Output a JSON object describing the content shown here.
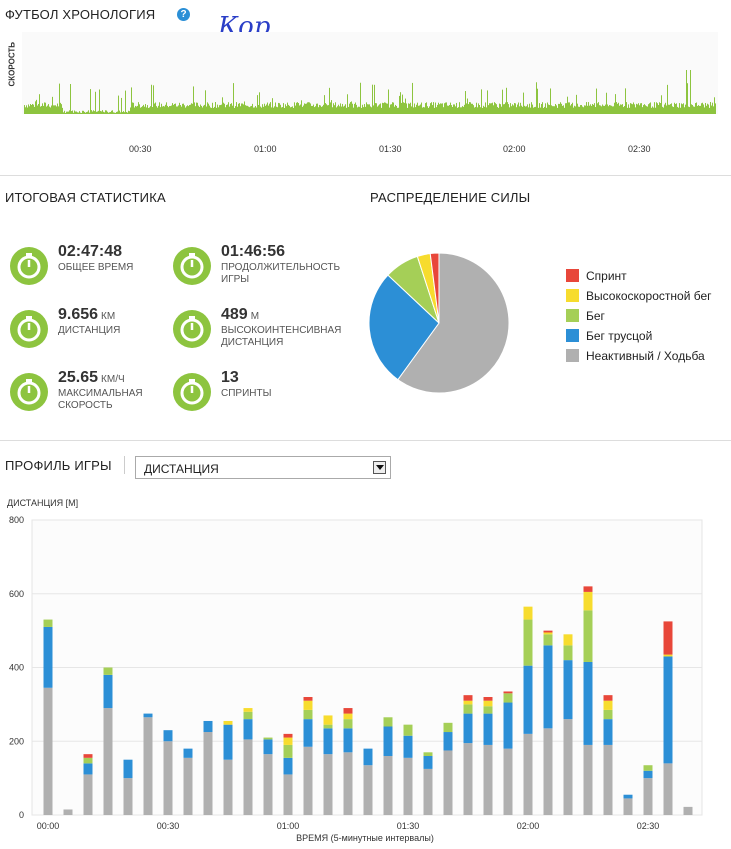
{
  "timeline": {
    "title": "ФУТБОЛ ХРОНОЛОГИЯ",
    "help_icon": "question-icon",
    "help_symbol": "?",
    "handwriting": "Кор",
    "y_label": "СКОРОСТЬ",
    "ticks": [
      "00:30",
      "01:00",
      "01:30",
      "02:00",
      "02:30"
    ],
    "color": "#8dc43f"
  },
  "summary": {
    "title": "ИТОГОВАЯ СТАТИСТИКА",
    "stats": [
      {
        "icon": "stopwatch-icon",
        "value": "02:47:48",
        "unit": "",
        "label": "ОБЩЕЕ ВРЕМЯ"
      },
      {
        "icon": "stopwatch-icon",
        "value": "01:46:56",
        "unit": "",
        "label": "ПРОДОЛЖИТЕЛЬНОСТЬ ИГРЫ"
      },
      {
        "icon": "road-icon",
        "value": "9.656",
        "unit": "КМ",
        "label": "ДИСТАНЦИЯ"
      },
      {
        "icon": "speedometer-icon",
        "value": "489",
        "unit": "М",
        "label": "ВЫСОКОИНТЕНСИВНАЯ ДИСТАНЦИЯ"
      },
      {
        "icon": "gauge-icon",
        "value": "25.65",
        "unit": "КМ/Ч",
        "label": "МАКСИМАЛЬНАЯ СКОРОСТЬ"
      },
      {
        "icon": "sprinter-icon",
        "value": "13",
        "unit": "",
        "label": "СПРИНТЫ"
      }
    ]
  },
  "distribution": {
    "title": "РАСПРЕДЕЛЕНИЕ СИЛЫ",
    "legend": [
      {
        "label": "Спринт",
        "color": "#e8473a"
      },
      {
        "label": "Высокоскоростной бег",
        "color": "#f7dc2e"
      },
      {
        "label": "Бег",
        "color": "#a5cf57"
      },
      {
        "label": "Бег трусцой",
        "color": "#2c8fd6"
      },
      {
        "label": "Неактивный / Ходьба",
        "color": "#b0b0b0"
      }
    ]
  },
  "profile": {
    "title": "ПРОФИЛЬ ИГРЫ",
    "select_value": "ДИСТАНЦИЯ"
  },
  "chart_data": [
    {
      "type": "area",
      "title": "ФУТБОЛ ХРОНОЛОГИЯ",
      "ylabel": "СКОРОСТЬ",
      "x_tick_labels": [
        "00:30",
        "01:00",
        "01:30",
        "02:00",
        "02:30"
      ],
      "series": [
        {
          "color": "#8dc43f",
          "pattern": "dense per-second speed trace; no values printed"
        }
      ]
    },
    {
      "type": "pie",
      "title": "РАСПРЕДЕЛЕНИЕ СИЛЫ",
      "legend_position": "right",
      "slices": [
        {
          "label": "Спринт",
          "value": 2,
          "color": "#e8473a"
        },
        {
          "label": "Высокоскоростной бег",
          "value": 3,
          "color": "#f7dc2e"
        },
        {
          "label": "Бег",
          "value": 8,
          "color": "#a5cf57"
        },
        {
          "label": "Бег трусцой",
          "value": 27,
          "color": "#2c8fd6"
        },
        {
          "label": "Неактивный / Ходьба",
          "value": 60,
          "color": "#b0b0b0"
        }
      ]
    },
    {
      "type": "bar",
      "stacked": true,
      "ylabel": "ДИСТАНЦИЯ [М]",
      "xlabel": "ВРЕМЯ (5-минутные интервалы)",
      "ylim": [
        0,
        800
      ],
      "y_ticks": [
        0,
        200,
        400,
        600,
        800
      ],
      "x_tick_labels": [
        "00:00",
        "00:30",
        "01:00",
        "01:30",
        "02:00",
        "02:30"
      ],
      "x_tick_bar_index": [
        0,
        6,
        12,
        18,
        24,
        30
      ],
      "grid": true,
      "series": [
        {
          "name": "Неактивный / Ходьба",
          "color": "#b0b0b0",
          "values": [
            345,
            15,
            110,
            290,
            100,
            265,
            200,
            155,
            225,
            150,
            205,
            165,
            110,
            185,
            165,
            170,
            135,
            160,
            155,
            125,
            175,
            195,
            190,
            180,
            220,
            235,
            260,
            190,
            190,
            45,
            100,
            140,
            22
          ]
        },
        {
          "name": "Бег трусцой",
          "color": "#2c8fd6",
          "values": [
            165,
            0,
            30,
            90,
            50,
            10,
            30,
            25,
            30,
            95,
            55,
            40,
            45,
            75,
            70,
            65,
            45,
            80,
            60,
            35,
            50,
            80,
            85,
            125,
            185,
            225,
            160,
            225,
            70,
            10,
            20,
            290,
            0
          ]
        },
        {
          "name": "Бег",
          "color": "#a5cf57",
          "values": [
            20,
            0,
            15,
            20,
            0,
            0,
            0,
            0,
            0,
            0,
            20,
            5,
            35,
            25,
            10,
            25,
            0,
            25,
            30,
            10,
            25,
            25,
            20,
            25,
            125,
            30,
            40,
            140,
            25,
            0,
            15,
            0,
            0
          ]
        },
        {
          "name": "Высокоскоростной бег",
          "color": "#f7dc2e",
          "values": [
            0,
            0,
            0,
            0,
            0,
            0,
            0,
            0,
            0,
            10,
            10,
            0,
            20,
            25,
            25,
            15,
            0,
            0,
            0,
            0,
            0,
            10,
            15,
            0,
            35,
            5,
            30,
            50,
            25,
            0,
            0,
            5,
            0
          ]
        },
        {
          "name": "Спринт",
          "color": "#e8473a",
          "values": [
            0,
            0,
            10,
            0,
            0,
            0,
            0,
            0,
            0,
            0,
            0,
            0,
            10,
            10,
            0,
            15,
            0,
            0,
            0,
            0,
            0,
            15,
            10,
            5,
            0,
            5,
            0,
            15,
            15,
            0,
            0,
            90,
            0
          ]
        }
      ]
    }
  ]
}
